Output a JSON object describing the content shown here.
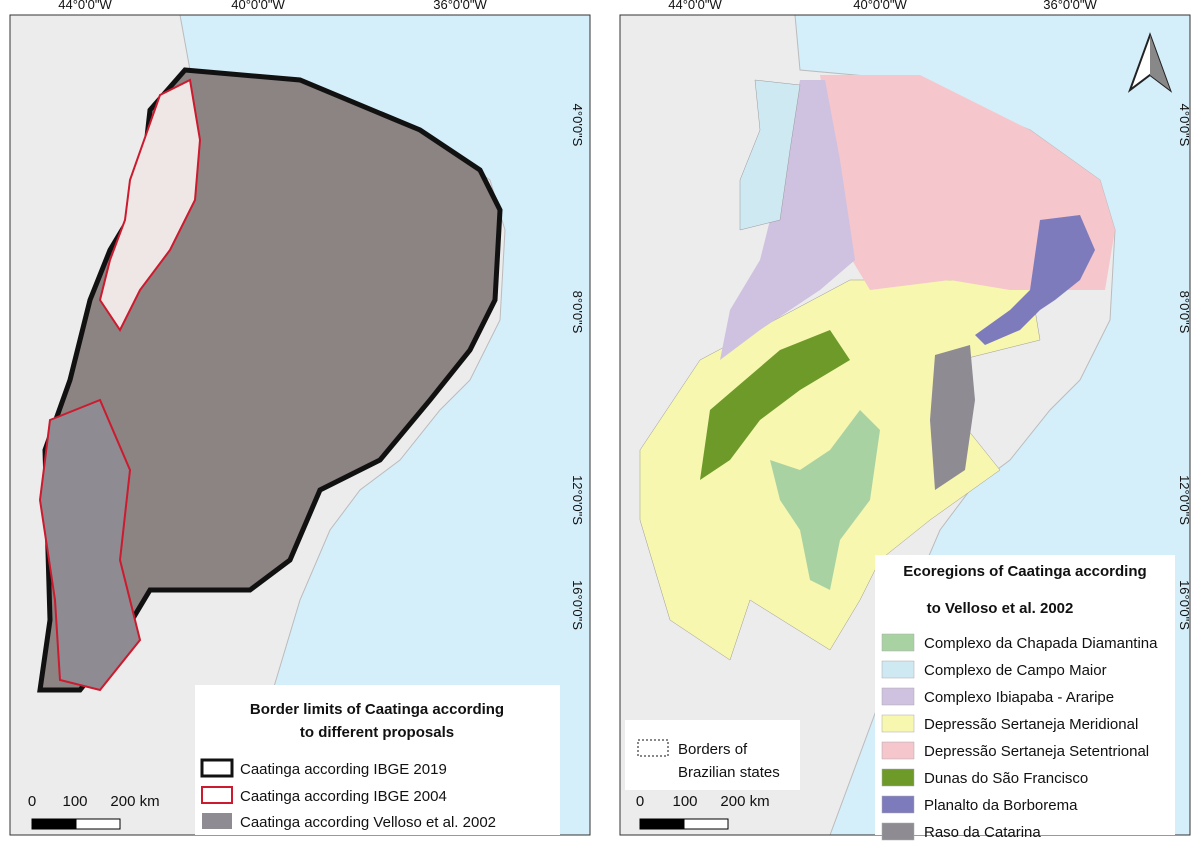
{
  "left_map": {
    "top_labels": [
      "44°0'0\"W",
      "40°0'0\"W",
      "36°0'0\"W"
    ],
    "right_labels": [
      "4°0'0\"S",
      "8°0'0\"S",
      "12°0'0\"S",
      "16°0'0\"S"
    ],
    "legend": {
      "title_lines": [
        "Border limits of Caatinga according",
        "to different proposals"
      ],
      "items": [
        "Caatinga according IBGE 2019",
        "Caatinga according IBGE 2004",
        "Caatinga according Velloso et al. 2002"
      ]
    },
    "scale": [
      "0",
      "100",
      "200 km"
    ]
  },
  "right_map": {
    "top_labels": [
      "44°0'0\"W",
      "40°0'0\"W",
      "36°0'0\"W"
    ],
    "right_labels": [
      "4°0'0\"S",
      "8°0'0\"S",
      "12°0'0\"S",
      "16°0'0\"S"
    ],
    "legend": {
      "title_lines": [
        "Ecoregions of Caatinga according",
        "to Velloso et al. 2002"
      ],
      "items": [
        "Complexo da Chapada Diamantina",
        "Complexo de Campo Maior",
        "Complexo Ibiapaba - Araripe",
        "Depressão Sertaneja Meridional",
        "Depressão Sertaneja Setentrional",
        "Dunas do São Francisco",
        "Planalto da Borborema",
        "Raso da Catarina"
      ]
    },
    "borders_legend": [
      "Borders of",
      "Brazilian states"
    ],
    "scale": [
      "0",
      "100",
      "200 km"
    ]
  }
}
